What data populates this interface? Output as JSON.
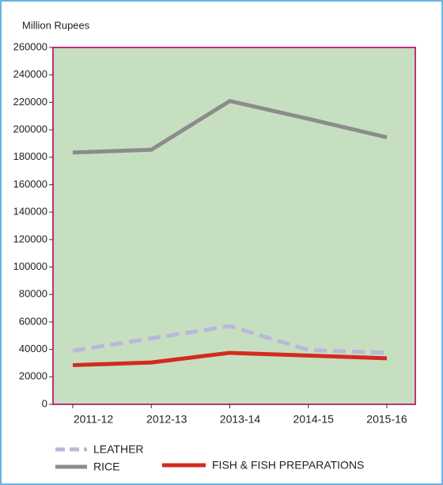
{
  "chart_data": {
    "type": "line",
    "y_label": "Million Rupees",
    "categories": [
      "2011-12",
      "2012-13",
      "2013-14",
      "2014-15",
      "2015-16"
    ],
    "series": [
      {
        "name": "LEATHER",
        "color": "#b9b7da",
        "style": "dashed",
        "values": [
          39000,
          48000,
          57000,
          39500,
          37500
        ]
      },
      {
        "name": "RICE",
        "color": "#8c8c8c",
        "style": "solid",
        "values": [
          183500,
          185500,
          221000,
          208000,
          194500
        ]
      },
      {
        "name": "FISH & FISH PREPARATIONS",
        "color": "#d42a20",
        "style": "solid",
        "values": [
          28500,
          30500,
          37500,
          35500,
          33500
        ]
      }
    ],
    "ylim": [
      0,
      260000
    ],
    "yticks": [
      0,
      20000,
      40000,
      60000,
      80000,
      100000,
      120000,
      140000,
      160000,
      180000,
      200000,
      220000,
      240000,
      260000
    ],
    "plot_background": "#c6dfc1",
    "plot_border": "#c0307a"
  }
}
